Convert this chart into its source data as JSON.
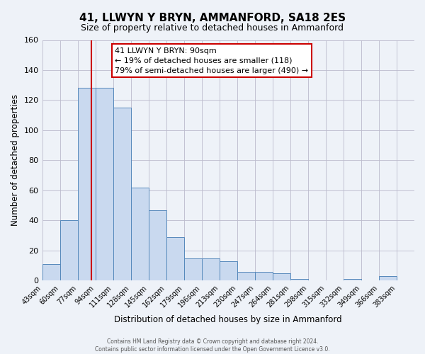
{
  "title": "41, LLWYN Y BRYN, AMMANFORD, SA18 2ES",
  "subtitle": "Size of property relative to detached houses in Ammanford",
  "xlabel": "Distribution of detached houses by size in Ammanford",
  "ylabel": "Number of detached properties",
  "footer_line1": "Contains HM Land Registry data © Crown copyright and database right 2024.",
  "footer_line2": "Contains public sector information licensed under the Open Government Licence v3.0.",
  "bin_labels": [
    "43sqm",
    "60sqm",
    "77sqm",
    "94sqm",
    "111sqm",
    "128sqm",
    "145sqm",
    "162sqm",
    "179sqm",
    "196sqm",
    "213sqm",
    "230sqm",
    "247sqm",
    "264sqm",
    "281sqm",
    "298sqm",
    "315sqm",
    "332sqm",
    "349sqm",
    "366sqm",
    "383sqm"
  ],
  "bin_edges": [
    43,
    60,
    77,
    94,
    111,
    128,
    145,
    162,
    179,
    196,
    213,
    230,
    247,
    264,
    281,
    298,
    315,
    332,
    349,
    366,
    383,
    400
  ],
  "bar_heights": [
    11,
    40,
    128,
    128,
    115,
    62,
    47,
    29,
    15,
    15,
    13,
    6,
    6,
    5,
    1,
    0,
    0,
    1,
    0,
    3,
    0
  ],
  "bar_facecolor": "#c9d9ef",
  "bar_edgecolor": "#5588bb",
  "grid_color": "#bbbbcc",
  "bg_color": "#eef2f8",
  "vline_x": 90,
  "vline_color": "#cc0000",
  "annotation_title": "41 LLWYN Y BRYN: 90sqm",
  "annotation_line1": "← 19% of detached houses are smaller (118)",
  "annotation_line2": "79% of semi-detached houses are larger (490) →",
  "ylim": [
    0,
    160
  ],
  "yticks": [
    0,
    20,
    40,
    60,
    80,
    100,
    120,
    140,
    160
  ]
}
